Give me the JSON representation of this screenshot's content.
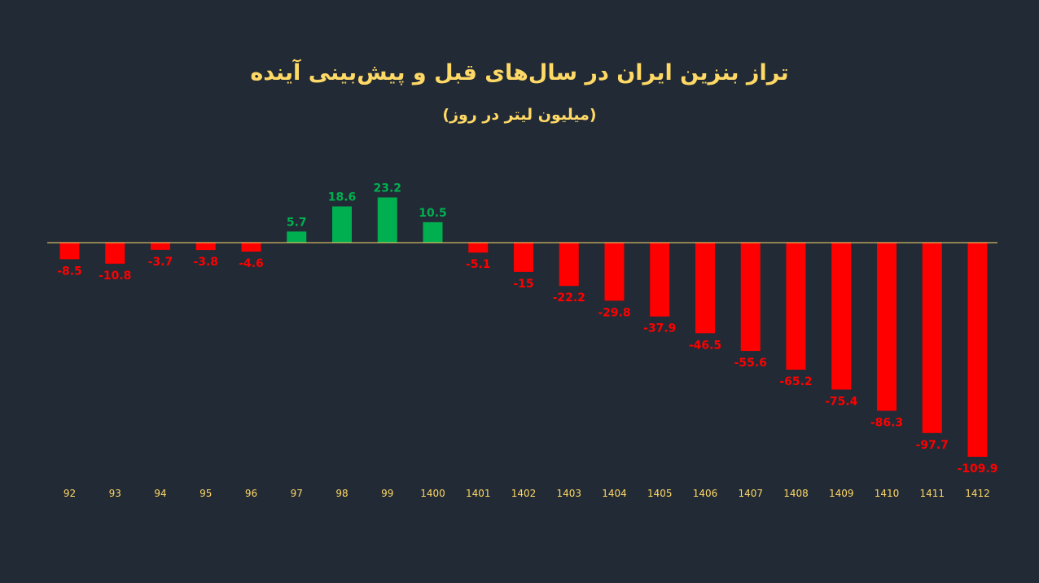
{
  "chart_data": {
    "type": "bar",
    "title": "تراز بنزین ایران در سال‌های قبل و پیش‌بینی آینده",
    "subtitle": "(میلیون لیتر در روز)",
    "xlabel": "",
    "ylabel": "",
    "categories": [
      "92",
      "93",
      "94",
      "95",
      "96",
      "97",
      "98",
      "99",
      "1400",
      "1401",
      "1402",
      "1403",
      "1404",
      "1405",
      "1406",
      "1407",
      "1408",
      "1409",
      "1410",
      "1411",
      "1412"
    ],
    "values": [
      -8.5,
      -10.8,
      -3.7,
      -3.8,
      -4.6,
      5.7,
      18.6,
      23.2,
      10.5,
      -5.1,
      -15,
      -22.2,
      -29.8,
      -37.9,
      -46.5,
      -55.6,
      -65.2,
      -75.4,
      -86.3,
      -97.7,
      -109.9
    ],
    "value_labels": [
      "-8.5",
      "-10.8",
      "-3.7",
      "-3.8",
      "-4.6",
      "5.7",
      "18.6",
      "23.2",
      "10.5",
      "-5.1",
      "-15",
      "-22.2",
      "-29.8",
      "-37.9",
      "-46.5",
      "-55.6",
      "-65.2",
      "-75.4",
      "-86.3",
      "-97.7",
      "-109.9"
    ],
    "ylim": [
      -109.9,
      23.2
    ],
    "grid": false,
    "legend": "none",
    "colors": {
      "positive": "#00b050",
      "negative": "#ff0000",
      "axis": "#ffd966",
      "text": "#ffd966",
      "background": "#222a35"
    }
  }
}
